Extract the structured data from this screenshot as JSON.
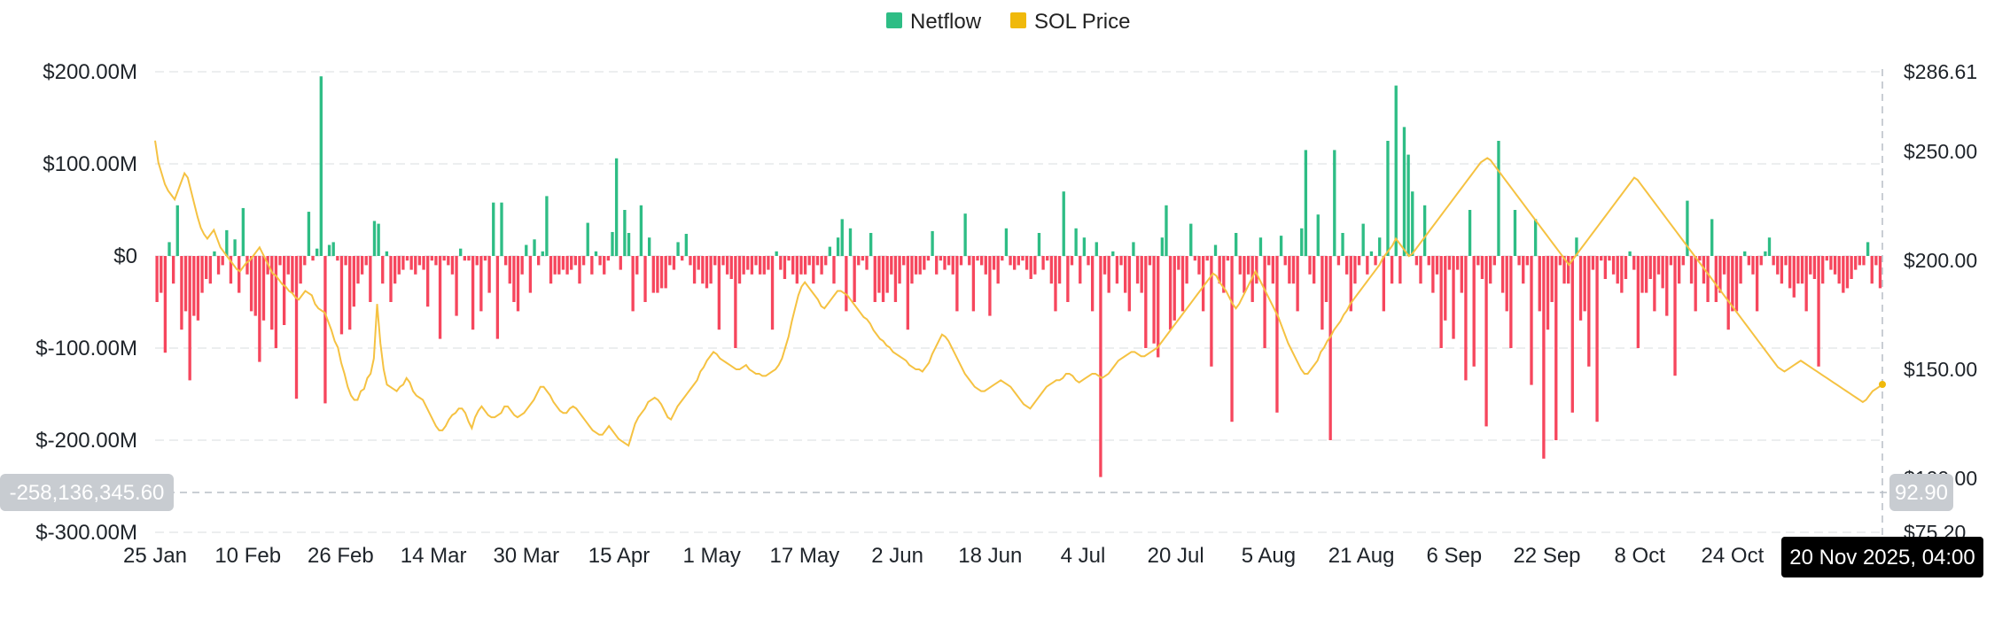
{
  "chart_data": {
    "type": "bar",
    "legend": [
      {
        "name": "Netflow",
        "color": "#2ebd85"
      },
      {
        "name": "SOL Price",
        "color": "#f0b90b"
      }
    ],
    "legend_position": "top-center",
    "colors": {
      "positive": "#2ebd85",
      "negative": "#f6465d",
      "price_line": "#f5c242",
      "grid": "#e6e8ea"
    },
    "grid": true,
    "x_ticks": [
      "25 Jan",
      "10 Feb",
      "26 Feb",
      "14 Mar",
      "30 Mar",
      "15 Apr",
      "1 May",
      "17 May",
      "2 Jun",
      "18 Jun",
      "4 Jul",
      "20 Jul",
      "5 Aug",
      "21 Aug",
      "6 Sep",
      "22 Sep",
      "8 Oct",
      "24 Oct"
    ],
    "y_left": {
      "ticks": [
        "$200.00M",
        "$100.00M",
        "$0",
        "$-100.00M",
        "$-200.00M",
        "$-300.00M"
      ],
      "tick_values": [
        200,
        100,
        0,
        -100,
        -200,
        -300
      ],
      "range": [
        -300,
        200
      ],
      "unit": "M"
    },
    "y_right": {
      "ticks": [
        "$286.61",
        "$250.00",
        "$200.00",
        "$150.00",
        "$100.00",
        "$75.20"
      ],
      "tick_values": [
        286.61,
        250,
        200,
        150,
        100,
        75.2
      ],
      "range": [
        75.2,
        286.61
      ]
    },
    "crosshair": {
      "left_value": "-258,136,345.60",
      "right_value": "92.90",
      "x_label": "20 Nov 2025, 04:00"
    },
    "series": [
      {
        "name": "Netflow",
        "x_start": "2025-01-25",
        "x_step_days": 1,
        "values": [
          -50,
          -40,
          -105,
          15,
          -30,
          55,
          -80,
          -60,
          -135,
          -65,
          -70,
          -40,
          -25,
          -30,
          5,
          -20,
          -10,
          28,
          -30,
          18,
          -40,
          52,
          -20,
          -60,
          -65,
          -115,
          -70,
          -20,
          -80,
          -100,
          -10,
          -75,
          -20,
          -40,
          -155,
          -30,
          -10,
          48,
          -5,
          8,
          195,
          -160,
          12,
          15,
          -5,
          -85,
          -10,
          -80,
          -55,
          -30,
          -20,
          -10,
          -50,
          38,
          35,
          -30,
          5,
          -50,
          -30,
          -20,
          -15,
          -5,
          -15,
          -20,
          -10,
          -15,
          -55,
          -5,
          -10,
          -90,
          -5,
          -10,
          -20,
          -65,
          8,
          -5,
          -5,
          -80,
          -10,
          -60,
          -5,
          -40,
          58,
          -90,
          58,
          -10,
          -30,
          -50,
          -60,
          -20,
          12,
          -40,
          18,
          -10,
          5,
          65,
          -30,
          -20,
          -20,
          -15,
          -20,
          -15,
          -10,
          -30,
          -10,
          36,
          -20,
          5,
          -10,
          -20,
          -5,
          26,
          106,
          -15,
          50,
          25,
          -60,
          -20,
          55,
          -50,
          20,
          -40,
          -40,
          -35,
          -35,
          -10,
          -15,
          15,
          -5,
          24,
          -10,
          -30,
          -15,
          -30,
          -35,
          -30,
          -10,
          -80,
          -10,
          -20,
          -25,
          -100,
          -30,
          -20,
          -15,
          -20,
          -10,
          -20,
          -20,
          -15,
          -80,
          5,
          -15,
          -25,
          -5,
          -20,
          -30,
          -20,
          -20,
          -10,
          -30,
          -10,
          -20,
          -10,
          10,
          -30,
          20,
          40,
          -60,
          30,
          -50,
          -10,
          -5,
          -15,
          25,
          -50,
          -40,
          -50,
          -40,
          -20,
          -50,
          -30,
          -10,
          -80,
          -30,
          -20,
          -20,
          -15,
          -5,
          27,
          -20,
          -5,
          -15,
          -10,
          -20,
          -60,
          -10,
          46,
          -10,
          -60,
          -5,
          -10,
          -20,
          -65,
          -15,
          -30,
          -5,
          30,
          -10,
          -15,
          -10,
          -5,
          -15,
          -25,
          -20,
          25,
          -15,
          -5,
          -30,
          -60,
          -30,
          70,
          -50,
          -10,
          30,
          -30,
          20,
          -10,
          -60,
          15,
          -240,
          -20,
          -40,
          5,
          -30,
          -10,
          -40,
          -60,
          15,
          -30,
          -40,
          -100,
          -10,
          -95,
          -110,
          20,
          55,
          -80,
          -70,
          -15,
          -60,
          -30,
          35,
          -5,
          -20,
          -60,
          -5,
          -120,
          12,
          -30,
          -40,
          -5,
          -180,
          25,
          -20,
          -40,
          -20,
          -50,
          -30,
          20,
          -100,
          -10,
          -30,
          -170,
          22,
          -10,
          -30,
          -30,
          -60,
          30,
          115,
          -20,
          -30,
          45,
          -80,
          -50,
          -200,
          115,
          -10,
          25,
          -20,
          -60,
          -30,
          -10,
          35,
          -20,
          5,
          -10,
          20,
          -60,
          125,
          -30,
          185,
          -30,
          140,
          110,
          70,
          -10,
          -30,
          55,
          -10,
          -40,
          -20,
          -100,
          -70,
          -15,
          -90,
          -15,
          -40,
          -135,
          50,
          -120,
          -10,
          -25,
          -185,
          -30,
          -10,
          125,
          -40,
          -60,
          -100,
          50,
          -10,
          -30,
          -10,
          -140,
          40,
          -60,
          -220,
          -80,
          -50,
          -200,
          -10,
          -30,
          -30,
          -170,
          20,
          -70,
          -60,
          -120,
          -15,
          -180,
          -5,
          -25,
          -5,
          -20,
          -30,
          -40,
          -25,
          5,
          -15,
          -100,
          -40,
          -40,
          -25,
          -60,
          -20,
          -35,
          -65,
          -10,
          -130,
          -30,
          -10,
          60,
          -30,
          -60,
          -5,
          -30,
          -50,
          40,
          -50,
          -40,
          -20,
          -80,
          -60,
          -60,
          -30,
          5,
          -10,
          -20,
          -60,
          -10,
          5,
          20,
          -10,
          -20,
          -30,
          -10,
          -35,
          -45,
          -30,
          -30,
          -60,
          -20,
          -25,
          -120,
          -30,
          -5,
          -15,
          -20,
          -30,
          -40,
          -35,
          -25,
          -15,
          -10,
          -10,
          15,
          -30,
          -10,
          -35
        ],
        "color_positive": "#2ebd85",
        "color_negative": "#f6465d"
      },
      {
        "name": "SOL Price",
        "x_start": "2025-01-25",
        "x_step_days": 0.5,
        "values": [
          255,
          245,
          240,
          235,
          232,
          230,
          228,
          232,
          236,
          240,
          238,
          232,
          226,
          220,
          215,
          212,
          210,
          212,
          214,
          210,
          206,
          204,
          202,
          200,
          198,
          196,
          195,
          197,
          199,
          200,
          202,
          204,
          206,
          203,
          200,
          197,
          194,
          193,
          191,
          189,
          188,
          186,
          185,
          183,
          182,
          184,
          186,
          185,
          184,
          180,
          178,
          177,
          176,
          172,
          168,
          163,
          160,
          153,
          148,
          142,
          138,
          136,
          136,
          140,
          141,
          146,
          148,
          155,
          180,
          162,
          150,
          143,
          142,
          141,
          140,
          142,
          143,
          146,
          144,
          140,
          138,
          137,
          136,
          133,
          130,
          127,
          124,
          122,
          122,
          124,
          127,
          129,
          130,
          132,
          132,
          130,
          126,
          123,
          128,
          131,
          133,
          131,
          129,
          128,
          128,
          129,
          130,
          133,
          133,
          131,
          129,
          128,
          129,
          130,
          132,
          134,
          136,
          139,
          142,
          142,
          140,
          138,
          135,
          133,
          131,
          130,
          130,
          132,
          133,
          132,
          130,
          128,
          126,
          124,
          122,
          121,
          120,
          120,
          122,
          124,
          122,
          120,
          118,
          117,
          116,
          115,
          120,
          125,
          128,
          130,
          132,
          135,
          136,
          137,
          136,
          134,
          131,
          128,
          127,
          130,
          133,
          135,
          137,
          139,
          141,
          143,
          145,
          149,
          151,
          154,
          156,
          158,
          157,
          155,
          154,
          153,
          152,
          151,
          150,
          150,
          151,
          152,
          150,
          149,
          148,
          148,
          147,
          147,
          148,
          149,
          150,
          152,
          155,
          160,
          165,
          172,
          178,
          184,
          188,
          190,
          188,
          186,
          184,
          182,
          179,
          178,
          180,
          182,
          184,
          186,
          186,
          185,
          184,
          182,
          180,
          178,
          176,
          174,
          173,
          171,
          168,
          166,
          164,
          163,
          161,
          160,
          158,
          157,
          156,
          155,
          154,
          152,
          151,
          150,
          150,
          149,
          151,
          153,
          157,
          160,
          163,
          166,
          165,
          163,
          160,
          157,
          154,
          151,
          148,
          146,
          144,
          142,
          141,
          140,
          140,
          141,
          142,
          143,
          144,
          145,
          144,
          143,
          142,
          140,
          138,
          136,
          134,
          133,
          132,
          134,
          136,
          138,
          140,
          142,
          143,
          144,
          145,
          145,
          146,
          148,
          148,
          147,
          145,
          144,
          145,
          146,
          147,
          148,
          148,
          147,
          146,
          147,
          148,
          150,
          152,
          154,
          155,
          156,
          157,
          158,
          158,
          157,
          156,
          156,
          157,
          158,
          159,
          160,
          162,
          164,
          166,
          168,
          170,
          172,
          174,
          176,
          178,
          180,
          182,
          184,
          186,
          188,
          190,
          192,
          194,
          193,
          190,
          188,
          186,
          183,
          180,
          178,
          180,
          183,
          186,
          189,
          192,
          195,
          192,
          189,
          186,
          183,
          180,
          177,
          174,
          170,
          166,
          162,
          159,
          156,
          153,
          150,
          148,
          148,
          150,
          152,
          154,
          158,
          160,
          163,
          165,
          168,
          170,
          172,
          175,
          177,
          180,
          182,
          184,
          186,
          188,
          190,
          192,
          194,
          196,
          198,
          201,
          203,
          205,
          207,
          210,
          208,
          206,
          204,
          202,
          203,
          205,
          207,
          209,
          211,
          213,
          215,
          217,
          219,
          221,
          223,
          225,
          227,
          229,
          231,
          233,
          235,
          237,
          239,
          241,
          243,
          245,
          246,
          247,
          246,
          244,
          242,
          240,
          238,
          236,
          234,
          232,
          230,
          228,
          226,
          224,
          222,
          220,
          218,
          216,
          214,
          212,
          210,
          208,
          206,
          204,
          202,
          200,
          198,
          200,
          202,
          204,
          206,
          208,
          210,
          212,
          214,
          216,
          218,
          220,
          222,
          224,
          226,
          228,
          230,
          232,
          234,
          236,
          238,
          237,
          235,
          233,
          231,
          229,
          227,
          225,
          223,
          221,
          219,
          217,
          215,
          213,
          211,
          209,
          207,
          205,
          203,
          201,
          199,
          197,
          195,
          193,
          191,
          189,
          187,
          185,
          183,
          181,
          179,
          177,
          175,
          173,
          171,
          169,
          167,
          165,
          163,
          161,
          159,
          157,
          155,
          153,
          151,
          150,
          149,
          150,
          151,
          152,
          153,
          154,
          153,
          152,
          151,
          150,
          149,
          148,
          147,
          146,
          145,
          144,
          143,
          142,
          141,
          140,
          139,
          138,
          137,
          136,
          135,
          136,
          138,
          140,
          141,
          142,
          143
        ],
        "color": "#f5c242"
      }
    ]
  }
}
